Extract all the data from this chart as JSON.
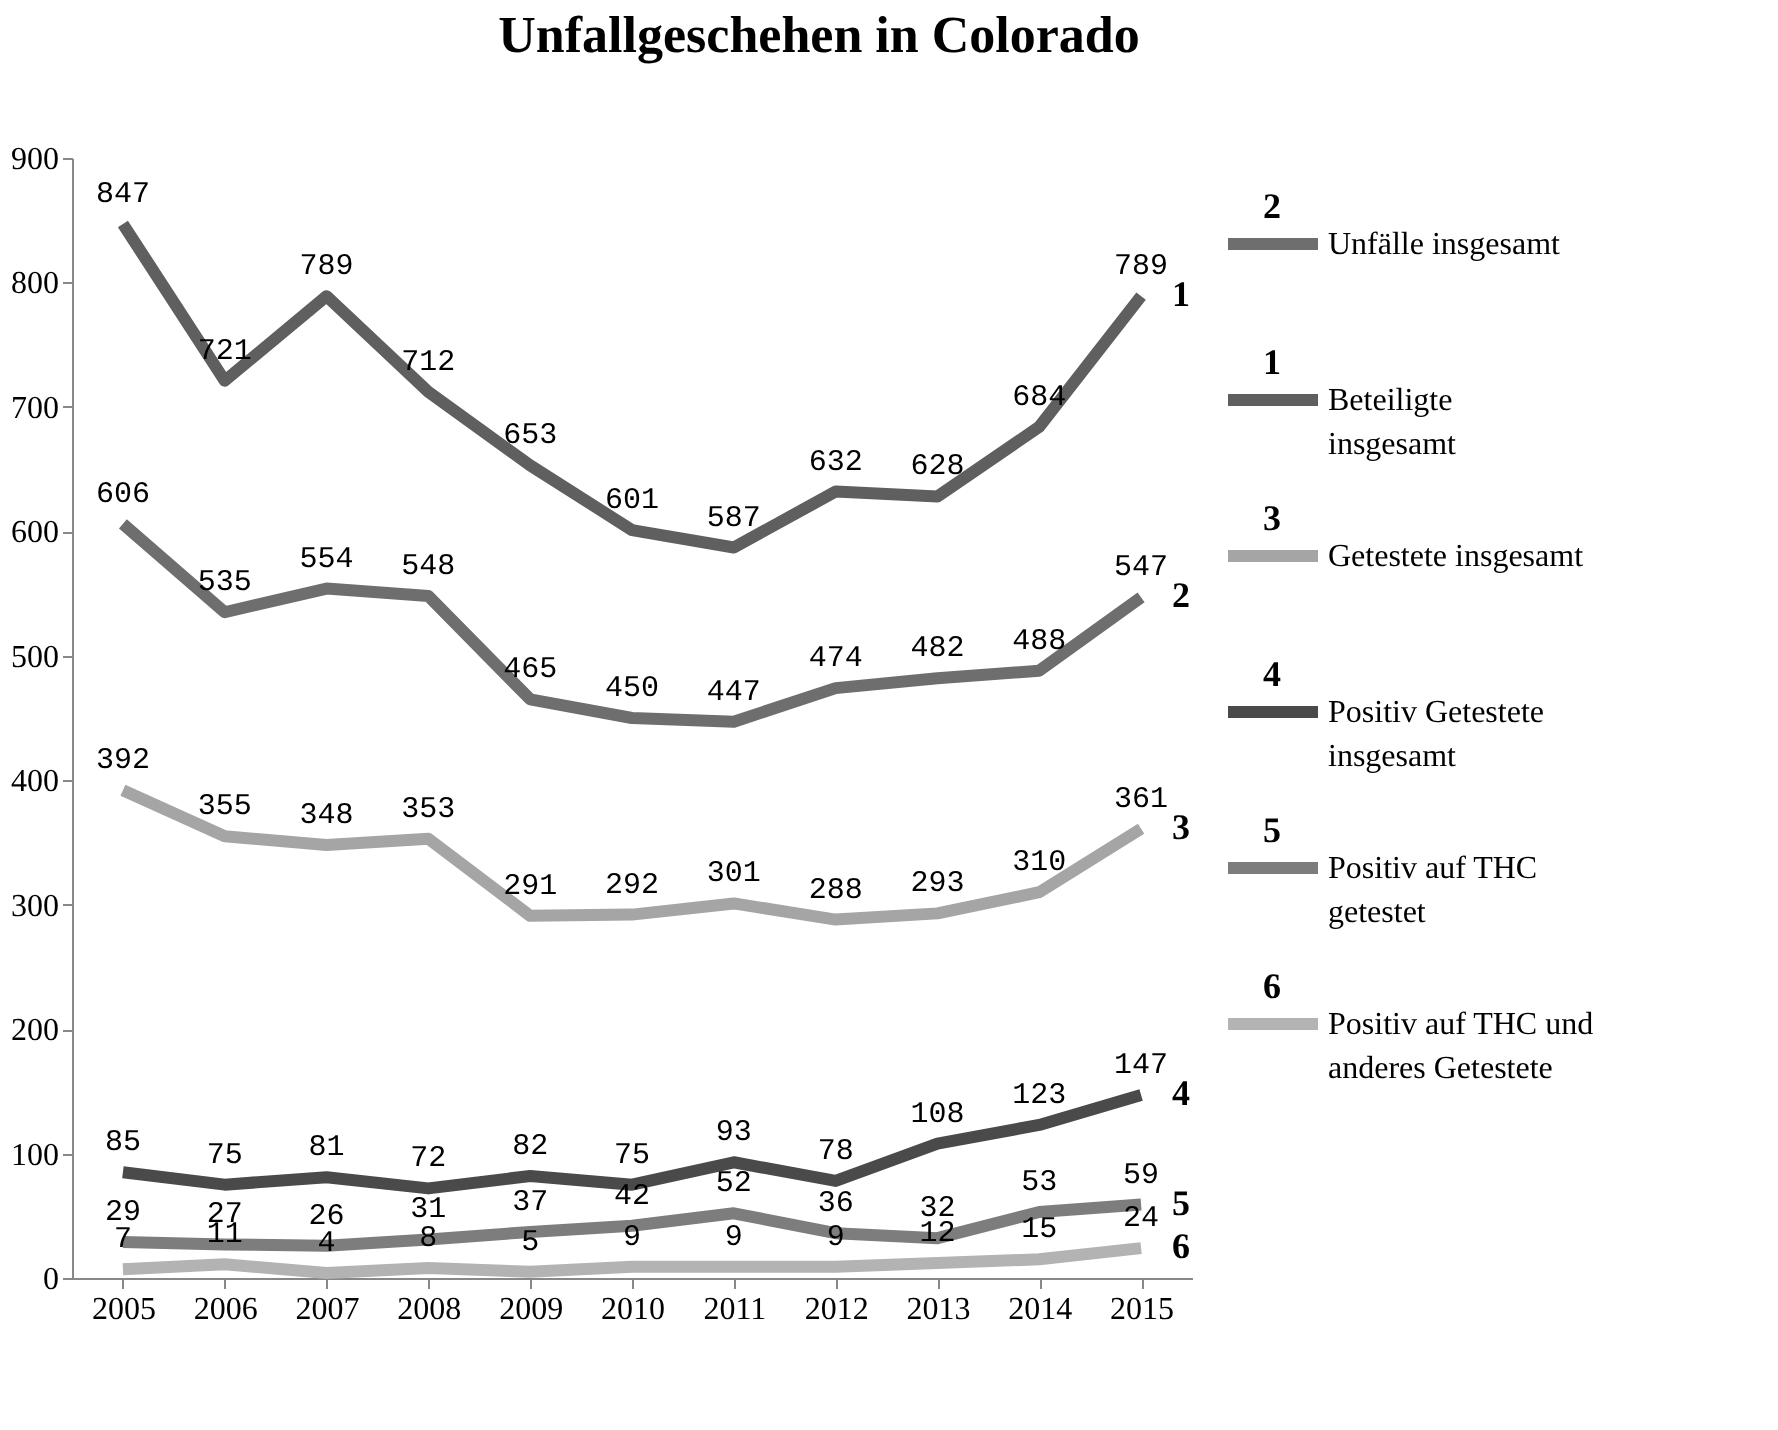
{
  "chart_data": {
    "type": "line",
    "title": "Unfallgeschehen in Colorado",
    "categories": [
      "2005",
      "2006",
      "2007",
      "2008",
      "2009",
      "2010",
      "2011",
      "2012",
      "2013",
      "2014",
      "2015"
    ],
    "series": [
      {
        "name": "Unfälle insgesamt",
        "color": "#6e6e6e",
        "values": [
          606,
          535,
          554,
          548,
          465,
          450,
          447,
          474,
          482,
          488,
          547
        ]
      },
      {
        "name": "Beteiligte insgesamt",
        "color": "#5f5f5f",
        "values": [
          847,
          721,
          789,
          712,
          653,
          601,
          587,
          632,
          628,
          684,
          789
        ]
      },
      {
        "name": "Getestete insgesamt",
        "color": "#a5a5a5",
        "values": [
          392,
          355,
          348,
          353,
          291,
          292,
          301,
          288,
          293,
          310,
          361
        ]
      },
      {
        "name": "Positiv Getestete insgesamt",
        "color": "#4a4a4a",
        "values": [
          85,
          75,
          81,
          72,
          82,
          75,
          93,
          78,
          108,
          123,
          147
        ]
      },
      {
        "name": "Positiv auf THC getestet",
        "color": "#7d7d7d",
        "values": [
          29,
          27,
          26,
          31,
          37,
          42,
          52,
          36,
          32,
          53,
          59
        ]
      },
      {
        "name": "Positiv auf THC und anderes Getestete",
        "color": "#b3b3b3",
        "values": [
          7,
          11,
          4,
          8,
          5,
          9,
          9,
          9,
          12,
          15,
          24
        ]
      }
    ],
    "annotations": [
      {
        "text": "2",
        "x": "2015",
        "y": 547
      },
      {
        "text": "1",
        "x": "2015",
        "y": 789
      },
      {
        "text": "3",
        "x": "2015",
        "y": 361
      },
      {
        "text": "4",
        "x": "2015",
        "y": 147
      },
      {
        "text": "5",
        "x": "2015",
        "y": 59
      },
      {
        "text": "6",
        "x": "2015",
        "y": 24
      }
    ],
    "ylim": [
      0,
      900
    ],
    "yticks": [
      0,
      100,
      200,
      300,
      400,
      500,
      600,
      700,
      800,
      900
    ],
    "data_labels": true,
    "grid": false,
    "legend": "right",
    "marker": "none",
    "line_style": "solid"
  }
}
